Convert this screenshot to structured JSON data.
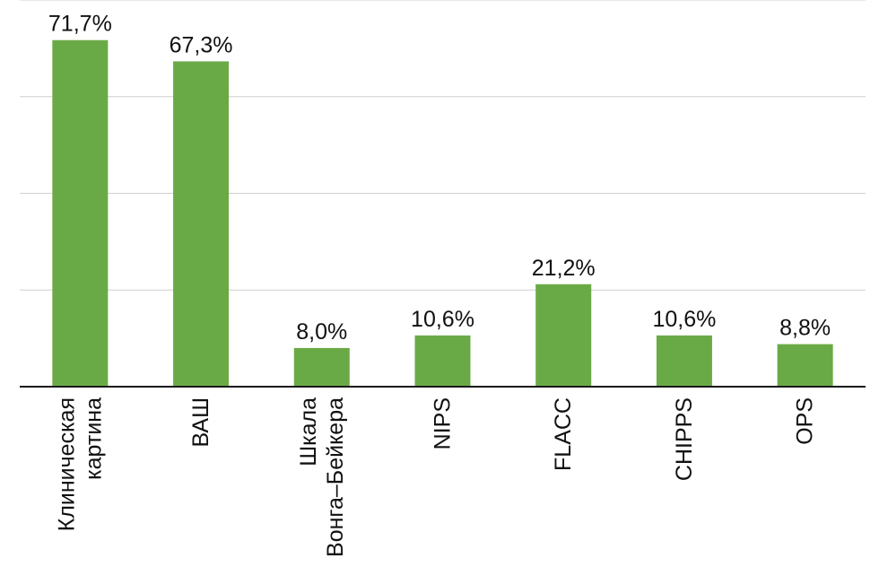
{
  "chart_data": {
    "type": "bar",
    "categories": [
      [
        "Клиническая",
        "картина"
      ],
      [
        "ВАШ"
      ],
      [
        "Шкала",
        "Вонга–Бейкера"
      ],
      [
        "NIPS"
      ],
      [
        "FLACC"
      ],
      [
        "CHIPPS"
      ],
      [
        "OPS"
      ]
    ],
    "values": [
      71.7,
      67.3,
      8.0,
      10.6,
      21.2,
      10.6,
      8.8
    ],
    "value_labels": [
      "71,7%",
      "67,3%",
      "8,0%",
      "10,6%",
      "21,2%",
      "10,6%",
      "8,8%"
    ],
    "ylim": [
      0,
      80
    ],
    "grid": true,
    "colors": {
      "bar": "#6aaa46",
      "grid": "#cfcfcf",
      "axis": "#1a1a1a"
    }
  }
}
